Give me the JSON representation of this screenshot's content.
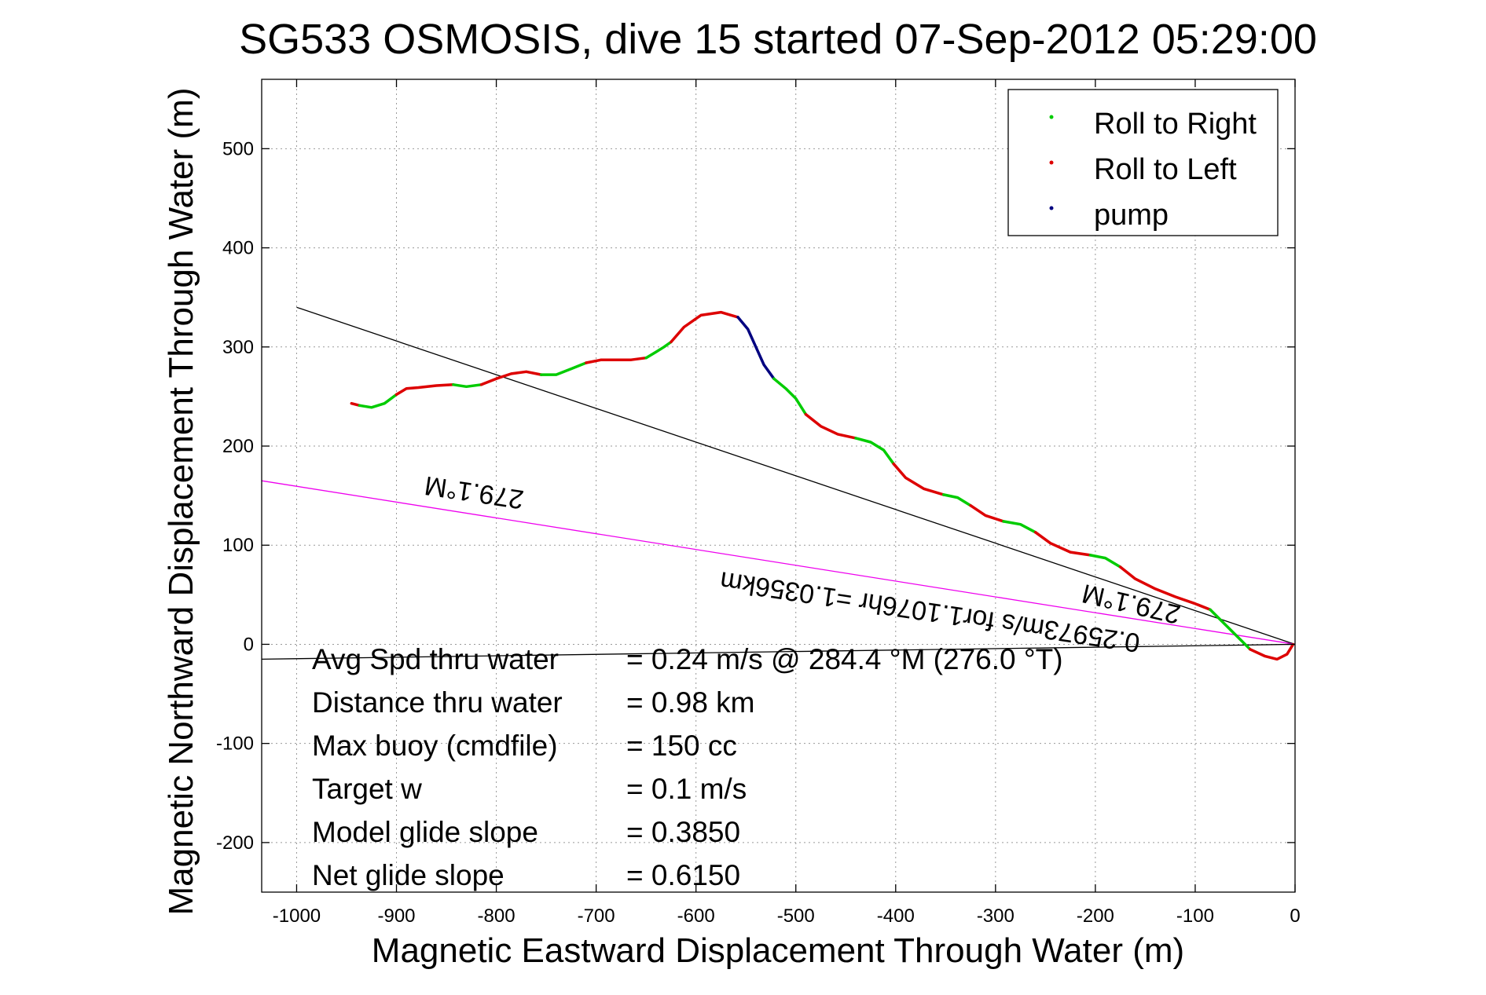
{
  "chart_data": {
    "type": "scatter",
    "title": "SG533 OSMOSIS, dive 15 started 07-Sep-2012 05:29:00",
    "xlabel": "Magnetic Eastward Displacement Through Water (m)",
    "ylabel": "Magnetic Northward Displacement Through Water (m)",
    "xlim": [
      -1035,
      0
    ],
    "ylim": [
      -250,
      570
    ],
    "xticks": [
      -1000,
      -900,
      -800,
      -700,
      -600,
      -500,
      -400,
      -300,
      -200,
      -100,
      0
    ],
    "yticks": [
      -200,
      -100,
      0,
      100,
      200,
      300,
      400,
      500
    ],
    "grid": true,
    "legend": {
      "placement": "top-right",
      "entries": [
        {
          "label": "Roll to Right",
          "color": "#00cc00"
        },
        {
          "label": "Roll to Left",
          "color": "#dd0000"
        },
        {
          "label": "pump",
          "color": "#000080"
        }
      ]
    },
    "trajectory": [
      {
        "series": "Roll to Left",
        "points": [
          [
            -945,
            243
          ],
          [
            -937,
            241
          ]
        ]
      },
      {
        "series": "Roll to Right",
        "points": [
          [
            -937,
            241
          ],
          [
            -925,
            239
          ],
          [
            -912,
            243
          ],
          [
            -900,
            252
          ]
        ]
      },
      {
        "series": "Roll to Left",
        "points": [
          [
            -900,
            252
          ],
          [
            -890,
            258
          ],
          [
            -878,
            259
          ],
          [
            -860,
            261
          ],
          [
            -843,
            262
          ]
        ]
      },
      {
        "series": "Roll to Right",
        "points": [
          [
            -843,
            262
          ],
          [
            -830,
            260
          ],
          [
            -815,
            262
          ]
        ]
      },
      {
        "series": "Roll to Left",
        "points": [
          [
            -815,
            262
          ],
          [
            -800,
            268
          ],
          [
            -785,
            273
          ],
          [
            -770,
            275
          ],
          [
            -755,
            272
          ]
        ]
      },
      {
        "series": "Roll to Right",
        "points": [
          [
            -755,
            272
          ],
          [
            -740,
            272
          ],
          [
            -725,
            278
          ],
          [
            -710,
            284
          ]
        ]
      },
      {
        "series": "Roll to Left",
        "points": [
          [
            -710,
            284
          ],
          [
            -695,
            287
          ],
          [
            -680,
            287
          ],
          [
            -665,
            287
          ],
          [
            -650,
            289
          ]
        ]
      },
      {
        "series": "Roll to Right",
        "points": [
          [
            -650,
            289
          ],
          [
            -640,
            295
          ],
          [
            -632,
            300
          ],
          [
            -625,
            305
          ]
        ]
      },
      {
        "series": "Roll to Left",
        "points": [
          [
            -625,
            305
          ],
          [
            -612,
            320
          ],
          [
            -595,
            332
          ],
          [
            -575,
            335
          ],
          [
            -558,
            330
          ]
        ]
      },
      {
        "series": "pump",
        "points": [
          [
            -558,
            330
          ],
          [
            -548,
            318
          ],
          [
            -540,
            300
          ],
          [
            -532,
            282
          ],
          [
            -522,
            268
          ]
        ]
      },
      {
        "series": "Roll to Right",
        "points": [
          [
            -522,
            268
          ],
          [
            -510,
            258
          ],
          [
            -500,
            248
          ],
          [
            -490,
            232
          ]
        ]
      },
      {
        "series": "Roll to Left",
        "points": [
          [
            -490,
            232
          ],
          [
            -475,
            220
          ],
          [
            -458,
            212
          ],
          [
            -440,
            208
          ]
        ]
      },
      {
        "series": "Roll to Right",
        "points": [
          [
            -440,
            208
          ],
          [
            -425,
            204
          ],
          [
            -412,
            196
          ],
          [
            -402,
            182
          ]
        ]
      },
      {
        "series": "Roll to Left",
        "points": [
          [
            -402,
            182
          ],
          [
            -390,
            168
          ],
          [
            -372,
            157
          ],
          [
            -352,
            151
          ]
        ]
      },
      {
        "series": "Roll to Right",
        "points": [
          [
            -352,
            151
          ],
          [
            -338,
            148
          ],
          [
            -325,
            140
          ]
        ]
      },
      {
        "series": "Roll to Left",
        "points": [
          [
            -325,
            140
          ],
          [
            -310,
            130
          ],
          [
            -292,
            124
          ]
        ]
      },
      {
        "series": "Roll to Right",
        "points": [
          [
            -292,
            124
          ],
          [
            -275,
            121
          ],
          [
            -260,
            113
          ]
        ]
      },
      {
        "series": "Roll to Left",
        "points": [
          [
            -260,
            113
          ],
          [
            -245,
            102
          ],
          [
            -225,
            93
          ],
          [
            -205,
            90
          ]
        ]
      },
      {
        "series": "Roll to Right",
        "points": [
          [
            -205,
            90
          ],
          [
            -190,
            87
          ],
          [
            -175,
            78
          ]
        ]
      },
      {
        "series": "Roll to Left",
        "points": [
          [
            -175,
            78
          ],
          [
            -160,
            66
          ],
          [
            -140,
            56
          ],
          [
            -120,
            48
          ],
          [
            -100,
            41
          ],
          [
            -85,
            35
          ]
        ]
      },
      {
        "series": "Roll to Right",
        "points": [
          [
            -85,
            35
          ],
          [
            -70,
            20
          ],
          [
            -55,
            5
          ],
          [
            -45,
            -5
          ]
        ]
      },
      {
        "series": "Roll to Left",
        "points": [
          [
            -45,
            -5
          ],
          [
            -30,
            -12
          ],
          [
            -18,
            -15
          ],
          [
            -8,
            -10
          ],
          [
            -2,
            0
          ]
        ]
      }
    ],
    "reference_lines": [
      {
        "name": "glide-track-line",
        "color": "#000000",
        "points": [
          [
            -1000,
            340
          ],
          [
            0,
            0
          ]
        ]
      },
      {
        "name": "current-heading-line",
        "color": "#ee00ee",
        "points": [
          [
            -1035,
            165
          ],
          [
            0,
            0
          ]
        ]
      },
      {
        "name": "mean-velocity-line",
        "color": "#000000",
        "points": [
          [
            -1035,
            -15
          ],
          [
            0,
            0
          ]
        ]
      }
    ],
    "annotations": {
      "heading_upper": "279.1°M",
      "heading_lower": "279.1°M",
      "speed_note": "0.25973m/s for1.1076hr =1.0356km"
    },
    "stats": [
      {
        "label": "Avg Spd thru water",
        "value": "=  0.24 m/s @ 284.4 °M (276.0 °T)"
      },
      {
        "label": "Distance thru water",
        "value": "=  0.98 km"
      },
      {
        "label": "Max buoy (cmdfile)",
        "value": "= 150 cc"
      },
      {
        "label": "Target w",
        "value": "= 0.1 m/s"
      },
      {
        "label": "Model glide slope",
        "value": "= 0.3850"
      },
      {
        "label": "Net glide slope",
        "value": "= 0.6150"
      }
    ]
  }
}
